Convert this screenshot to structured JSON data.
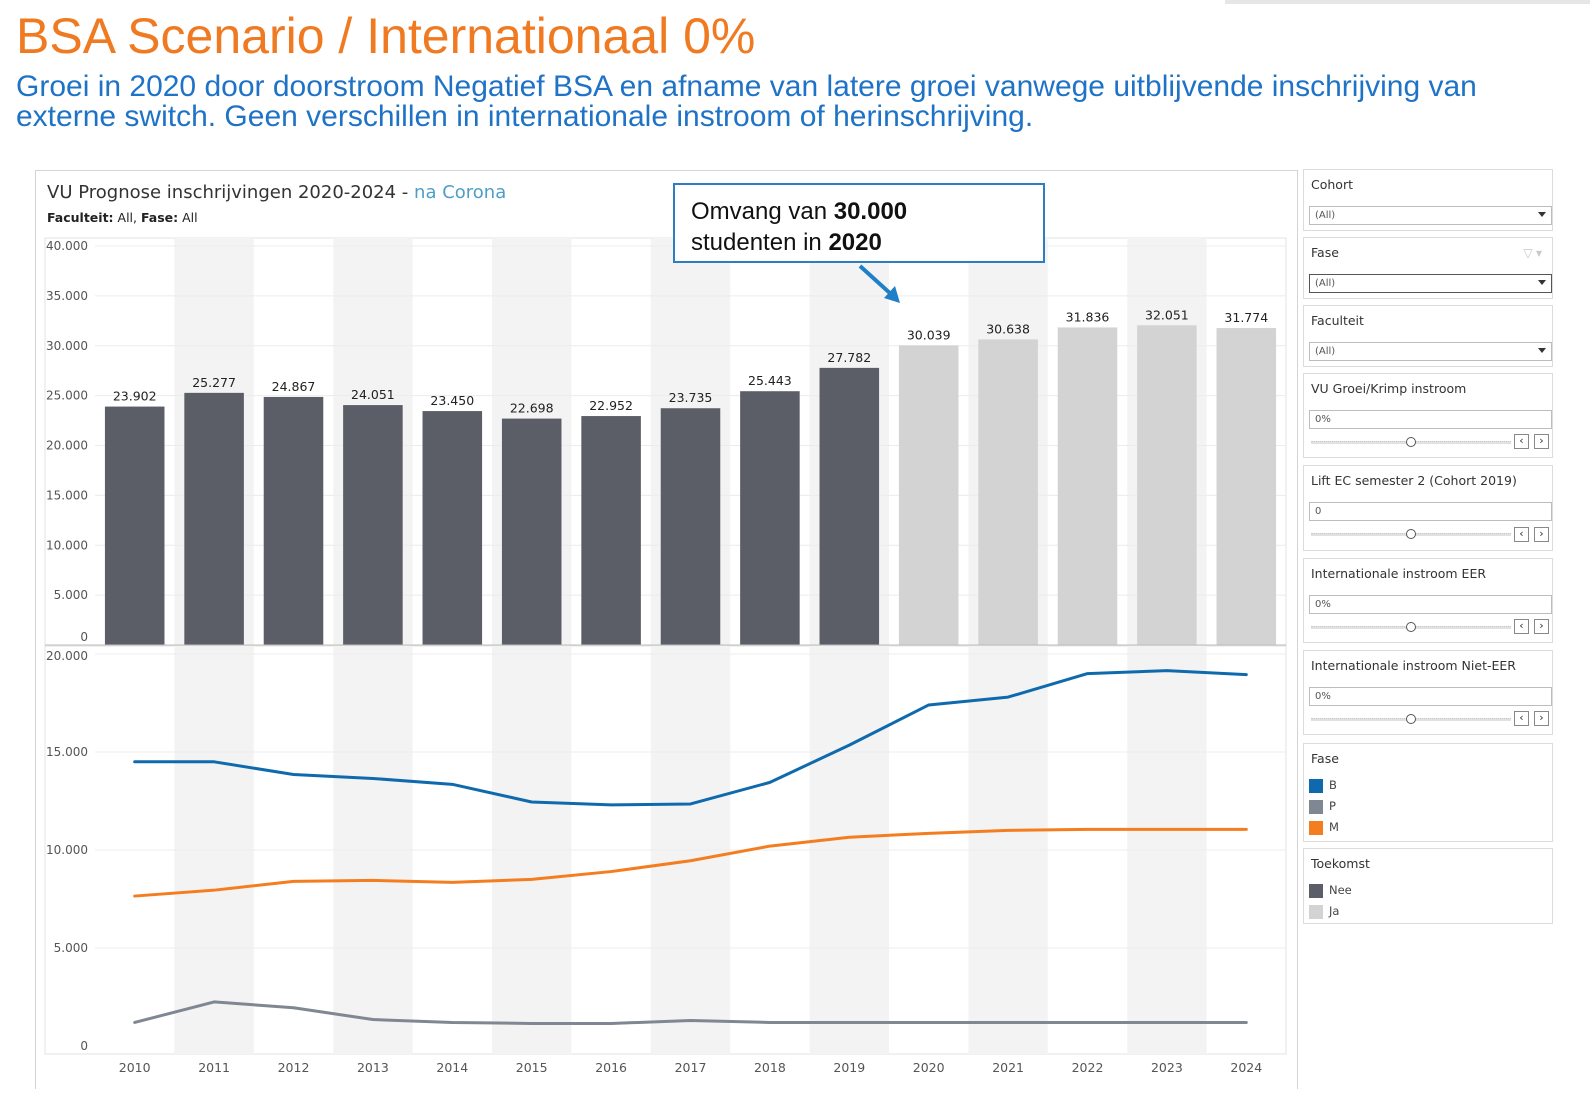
{
  "page": {
    "title": "BSA Scenario / Internationaal 0%",
    "subtitle": "Groei in 2020 door doorstroom Negatief BSA en afname van latere groei vanwege uitblijvende inschrijving van externe switch. Geen verschillen in internationale instroom of herinschrijving."
  },
  "viz": {
    "title_main": "VU Prognose inschrijvingen 2020-2024 - ",
    "title_sub": "na Corona",
    "meta_facultate_label": "Faculteit:",
    "meta_facultate_value": " All, ",
    "meta_fase_label": "Fase:",
    "meta_fase_value": " All"
  },
  "callout": {
    "line1_plain": "Omvang van ",
    "line1_bold": "30.000",
    "line2_plain": "studenten in ",
    "line2_bold": "2020"
  },
  "colors": {
    "bar_past": "#5b5e66",
    "bar_future": "#d3d3d3",
    "band": "#f3f3f3",
    "series_B": "#0f6aad",
    "series_P": "#7f8792",
    "series_M": "#f47d20",
    "title_orange": "#f07a22",
    "subtitle_blue": "#1f73c6"
  },
  "chart_data": [
    {
      "type": "bar",
      "title": "VU Prognose inschrijvingen 2020-2024 - na Corona",
      "categories": [
        "2010",
        "2011",
        "2012",
        "2013",
        "2014",
        "2015",
        "2016",
        "2017",
        "2018",
        "2019",
        "2020",
        "2021",
        "2022",
        "2023",
        "2024"
      ],
      "values": [
        23902,
        25277,
        24867,
        24051,
        23450,
        22698,
        22952,
        23735,
        25443,
        27782,
        30039,
        30638,
        31836,
        32051,
        31774
      ],
      "value_labels": [
        "23.902",
        "25.277",
        "24.867",
        "24.051",
        "23.450",
        "22.698",
        "22.952",
        "23.735",
        "25.443",
        "27.782",
        "30.039",
        "30.638",
        "31.836",
        "32.051",
        "31.774"
      ],
      "toekomst": [
        "Nee",
        "Nee",
        "Nee",
        "Nee",
        "Nee",
        "Nee",
        "Nee",
        "Nee",
        "Nee",
        "Nee",
        "Ja",
        "Ja",
        "Ja",
        "Ja",
        "Ja"
      ],
      "ylim": [
        0,
        40000
      ],
      "yticks": [
        0,
        5000,
        10000,
        15000,
        20000,
        25000,
        30000,
        35000,
        40000
      ],
      "ytick_labels": [
        "0",
        "5.000",
        "10.000",
        "15.000",
        "20.000",
        "25.000",
        "30.000",
        "35.000",
        "40.000"
      ],
      "grid": true
    },
    {
      "type": "line",
      "x": [
        "2010",
        "2011",
        "2012",
        "2013",
        "2014",
        "2015",
        "2016",
        "2017",
        "2018",
        "2019",
        "2020",
        "2021",
        "2022",
        "2023",
        "2024"
      ],
      "series": [
        {
          "name": "B",
          "values": [
            14500,
            14500,
            13850,
            13650,
            13350,
            12450,
            12300,
            12350,
            13450,
            15350,
            17400,
            17800,
            19000,
            19150,
            18950
          ]
        },
        {
          "name": "M",
          "values": [
            7650,
            7950,
            8400,
            8450,
            8350,
            8500,
            8900,
            9450,
            10200,
            10650,
            10850,
            11000,
            11050,
            11050,
            11050
          ]
        },
        {
          "name": "P",
          "values": [
            1200,
            2250,
            1950,
            1350,
            1200,
            1150,
            1150,
            1300,
            1200,
            1200,
            1200,
            1200,
            1200,
            1200,
            1200
          ]
        }
      ],
      "ylim": [
        0,
        20000
      ],
      "yticks": [
        0,
        5000,
        10000,
        15000,
        20000
      ],
      "ytick_labels": [
        "0",
        "5.000",
        "10.000",
        "15.000",
        "20.000"
      ],
      "xtick_labels": [
        "2010",
        "2011",
        "2012",
        "2013",
        "2014",
        "2015",
        "2016",
        "2017",
        "2018",
        "2019",
        "2020",
        "2021",
        "2022",
        "2023",
        "2024"
      ],
      "grid": true
    }
  ],
  "filters": {
    "cohort": {
      "title": "Cohort",
      "value": "(All)"
    },
    "fase": {
      "title": "Fase",
      "value": "(All)"
    },
    "faculteit": {
      "title": "Faculteit",
      "value": "(All)"
    },
    "groei": {
      "title": "VU Groei/Krimp instroom",
      "value": "0%",
      "level": 0.5
    },
    "lift": {
      "title": "Lift EC semester 2 (Cohort 2019)",
      "value": "0",
      "level": 0.5
    },
    "eer": {
      "title": "Internationale instroom EER",
      "value": "0%",
      "level": 0.5
    },
    "nieteer": {
      "title": "Internationale instroom Niet-EER",
      "value": "0%",
      "level": 0.5
    },
    "prev": "‹",
    "next": "›"
  },
  "legends": {
    "fase": {
      "title": "Fase",
      "items": [
        {
          "label": "B",
          "color": "#0f6aad"
        },
        {
          "label": "P",
          "color": "#7f8792"
        },
        {
          "label": "M",
          "color": "#f47d20"
        }
      ]
    },
    "toekomst": {
      "title": "Toekomst",
      "items": [
        {
          "label": "Nee",
          "color": "#5b5e66"
        },
        {
          "label": "Ja",
          "color": "#d3d3d3"
        }
      ]
    }
  }
}
